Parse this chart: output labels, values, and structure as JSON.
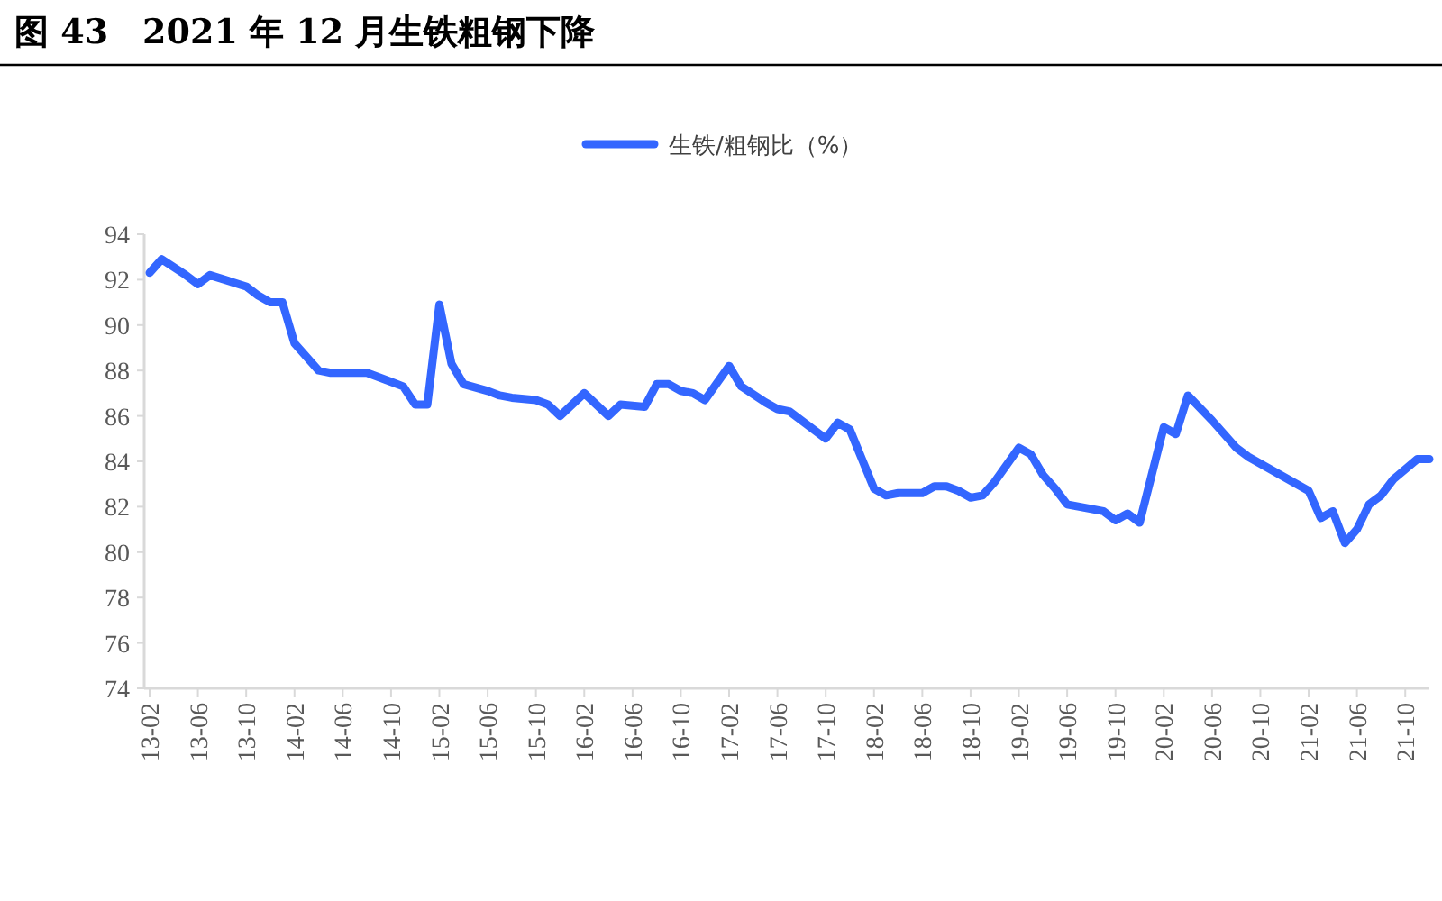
{
  "chart_data": {
    "type": "line",
    "title": "图 43　2021 年 12 月生铁粗钢下降",
    "legend": "top",
    "xlim": [
      "2013-02",
      "2021-12"
    ],
    "xticks": [
      {
        "value": "2013-02",
        "label": "13-02"
      },
      {
        "value": "2013-06",
        "label": "13-06"
      },
      {
        "value": "2013-10",
        "label": "13-10"
      },
      {
        "value": "2014-02",
        "label": "14-02"
      },
      {
        "value": "2014-06",
        "label": "14-06"
      },
      {
        "value": "2014-10",
        "label": "14-10"
      },
      {
        "value": "2015-02",
        "label": "15-02"
      },
      {
        "value": "2015-06",
        "label": "15-06"
      },
      {
        "value": "2015-10",
        "label": "15-10"
      },
      {
        "value": "2016-02",
        "label": "16-02"
      },
      {
        "value": "2016-06",
        "label": "16-06"
      },
      {
        "value": "2016-10",
        "label": "16-10"
      },
      {
        "value": "2017-02",
        "label": "17-02"
      },
      {
        "value": "2017-06",
        "label": "17-06"
      },
      {
        "value": "2017-10",
        "label": "17-10"
      },
      {
        "value": "2018-02",
        "label": "18-02"
      },
      {
        "value": "2018-06",
        "label": "18-06"
      },
      {
        "value": "2018-10",
        "label": "18-10"
      },
      {
        "value": "2019-02",
        "label": "19-02"
      },
      {
        "value": "2019-06",
        "label": "19-06"
      },
      {
        "value": "2019-10",
        "label": "19-10"
      },
      {
        "value": "2020-02",
        "label": "20-02"
      },
      {
        "value": "2020-06",
        "label": "20-06"
      },
      {
        "value": "2020-10",
        "label": "20-10"
      },
      {
        "value": "2021-02",
        "label": "21-02"
      },
      {
        "value": "2021-06",
        "label": "21-06"
      },
      {
        "value": "2021-10",
        "label": "21-10"
      }
    ],
    "ylim": [
      74,
      94
    ],
    "yticks": [
      74,
      76,
      78,
      80,
      82,
      84,
      86,
      88,
      90,
      92,
      94
    ],
    "series": [
      {
        "name": "生铁/粗钢比（%）",
        "color": "#3366ff",
        "x": [
          "2013-02",
          "2013-03",
          "2013-05",
          "2013-06",
          "2013-07",
          "2013-10",
          "2013-11",
          "2013-12",
          "2014-01",
          "2014-02",
          "2014-04",
          "2014-05",
          "2014-08",
          "2014-10",
          "2014-11",
          "2014-12",
          "2015-01",
          "2015-02",
          "2015-03",
          "2015-04",
          "2015-06",
          "2015-07",
          "2015-08",
          "2015-10",
          "2015-11",
          "2015-12",
          "2016-02",
          "2016-04",
          "2016-05",
          "2016-07",
          "2016-08",
          "2016-09",
          "2016-10",
          "2016-11",
          "2016-12",
          "2017-02",
          "2017-03",
          "2017-05",
          "2017-06",
          "2017-07",
          "2017-10",
          "2017-11",
          "2017-12",
          "2018-02",
          "2018-03",
          "2018-04",
          "2018-06",
          "2018-07",
          "2018-08",
          "2018-09",
          "2018-10",
          "2018-11",
          "2018-12",
          "2019-02",
          "2019-03",
          "2019-04",
          "2019-05",
          "2019-06",
          "2019-09",
          "2019-10",
          "2019-11",
          "2019-12",
          "2020-02",
          "2020-03",
          "2020-04",
          "2020-06",
          "2020-08",
          "2020-09",
          "2021-02",
          "2021-03",
          "2021-04",
          "2021-05",
          "2021-06",
          "2021-07",
          "2021-08",
          "2021-09",
          "2021-11",
          "2021-12"
        ],
        "values": [
          92.3,
          92.9,
          92.2,
          91.8,
          92.2,
          91.7,
          91.3,
          91.0,
          91.0,
          89.2,
          88.0,
          87.9,
          87.9,
          87.5,
          87.3,
          86.5,
          86.5,
          90.9,
          88.3,
          87.4,
          87.1,
          86.9,
          86.8,
          86.7,
          86.5,
          86.0,
          87.0,
          86.0,
          86.5,
          86.4,
          87.4,
          87.4,
          87.1,
          87.0,
          86.7,
          88.2,
          87.3,
          86.6,
          86.3,
          86.2,
          85.0,
          85.7,
          85.4,
          82.8,
          82.5,
          82.6,
          82.6,
          82.9,
          82.9,
          82.7,
          82.4,
          82.5,
          83.1,
          84.6,
          84.3,
          83.4,
          82.8,
          82.1,
          81.8,
          81.4,
          81.7,
          81.3,
          85.5,
          85.2,
          86.9,
          85.8,
          84.6,
          84.2,
          82.7,
          81.5,
          81.8,
          80.4,
          81.0,
          82.1,
          82.5,
          83.2,
          84.1,
          84.1
        ]
      }
    ]
  }
}
